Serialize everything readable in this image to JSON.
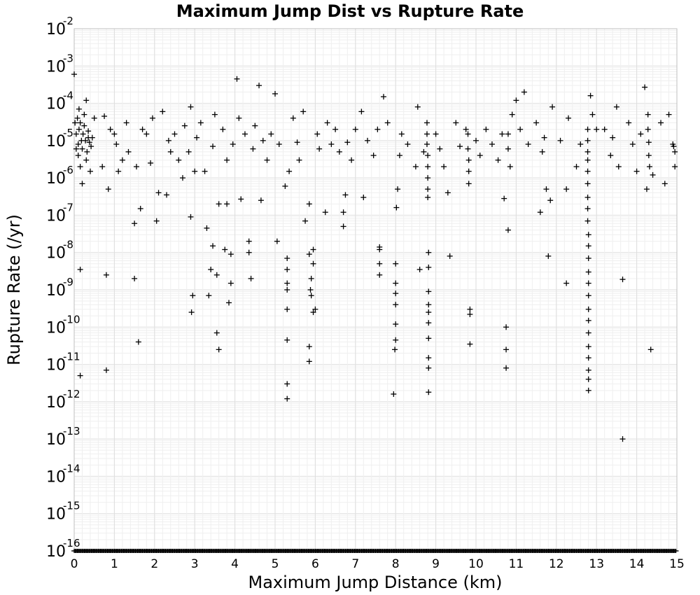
{
  "chart_data": {
    "type": "scatter",
    "title": "Maximum Jump Dist vs Rupture Rate",
    "xlabel": "Maximum Jump Distance (km)",
    "ylabel": "Rupture Rate (/yr)",
    "xlim": [
      0,
      15
    ],
    "ylim": [
      1e-16,
      0.01
    ],
    "yscale": "log",
    "grid": true,
    "legend": "none",
    "marker": "plus",
    "marker_color": "#000000",
    "x_ticks": [
      "0",
      "1",
      "2",
      "3",
      "4",
      "5",
      "6",
      "7",
      "8",
      "9",
      "10",
      "11",
      "12",
      "13",
      "14",
      "15"
    ],
    "y_tick_base": "10",
    "y_tick_exponents": [
      "-2",
      "-3",
      "-4",
      "-5",
      "-6",
      "-7",
      "-8",
      "-9",
      "-10",
      "-11",
      "-12",
      "-13",
      "-14",
      "-15",
      "-16"
    ],
    "series": [
      {
        "points": [
          [
            0.0,
            0.0006
          ],
          [
            0.02,
            3e-05
          ],
          [
            0.05,
            1.5e-05
          ],
          [
            0.08,
            4e-05
          ],
          [
            0.1,
            8e-06
          ],
          [
            0.12,
            2e-05
          ],
          [
            0.15,
            3e-05
          ],
          [
            0.18,
            1e-05
          ],
          [
            0.2,
            6e-06
          ],
          [
            0.22,
            1.5e-05
          ],
          [
            0.25,
            2.5e-05
          ],
          [
            0.28,
            1e-05
          ],
          [
            0.3,
            0.00012
          ],
          [
            0.32,
            5e-06
          ],
          [
            0.35,
            1.8e-05
          ],
          [
            0.38,
            9e-06
          ],
          [
            0.4,
            1.5e-06
          ],
          [
            0.42,
            7e-06
          ],
          [
            0.45,
            1.2e-05
          ],
          [
            0.5,
            4e-05
          ],
          [
            0.05,
            6e-06
          ],
          [
            0.1,
            4e-06
          ],
          [
            0.15,
            2e-06
          ],
          [
            0.2,
            7e-07
          ],
          [
            0.15,
            3.5e-09
          ],
          [
            0.15,
            5e-12
          ],
          [
            0.3,
            3e-06
          ],
          [
            0.25,
            5e-05
          ],
          [
            0.35,
            1.2e-05
          ],
          [
            0.12,
            7e-05
          ],
          [
            0.7,
            2e-06
          ],
          [
            0.75,
            4.5e-05
          ],
          [
            0.8,
            2.5e-09
          ],
          [
            0.8,
            7e-12
          ],
          [
            0.85,
            5e-07
          ],
          [
            0.9,
            2e-05
          ],
          [
            1.0,
            1.5e-05
          ],
          [
            1.05,
            8e-06
          ],
          [
            1.1,
            1.5e-06
          ],
          [
            1.2,
            3e-06
          ],
          [
            1.3,
            3e-05
          ],
          [
            1.35,
            5e-06
          ],
          [
            1.5,
            6e-08
          ],
          [
            1.5,
            2e-09
          ],
          [
            1.55,
            2e-06
          ],
          [
            1.6,
            4e-11
          ],
          [
            1.65,
            1.5e-07
          ],
          [
            1.7,
            2e-05
          ],
          [
            1.8,
            1.5e-05
          ],
          [
            1.9,
            2.5e-06
          ],
          [
            1.95,
            4e-05
          ],
          [
            2.05,
            7e-08
          ],
          [
            2.1,
            4e-07
          ],
          [
            2.2,
            6e-05
          ],
          [
            2.3,
            3.5e-07
          ],
          [
            2.35,
            1e-05
          ],
          [
            2.4,
            5e-06
          ],
          [
            2.5,
            1.5e-05
          ],
          [
            2.6,
            3e-06
          ],
          [
            2.7,
            1e-06
          ],
          [
            2.75,
            2.5e-05
          ],
          [
            2.85,
            5e-06
          ],
          [
            2.9,
            8e-05
          ],
          [
            2.9,
            9e-08
          ],
          [
            2.92,
            2.5e-10
          ],
          [
            2.95,
            7e-10
          ],
          [
            3.0,
            1.5e-06
          ],
          [
            3.05,
            1.2e-05
          ],
          [
            3.15,
            3e-05
          ],
          [
            3.25,
            1.5e-06
          ],
          [
            3.3,
            4.5e-08
          ],
          [
            3.35,
            7e-10
          ],
          [
            3.4,
            3.5e-09
          ],
          [
            3.45,
            1.5e-08
          ],
          [
            3.45,
            7e-06
          ],
          [
            3.5,
            5e-05
          ],
          [
            3.55,
            2.5e-09
          ],
          [
            3.55,
            7e-11
          ],
          [
            3.6,
            2.5e-11
          ],
          [
            3.6,
            2e-07
          ],
          [
            3.7,
            2e-05
          ],
          [
            3.75,
            1.2e-08
          ],
          [
            3.8,
            3e-06
          ],
          [
            3.85,
            4.5e-10
          ],
          [
            3.9,
            9e-09
          ],
          [
            3.9,
            1.5e-09
          ],
          [
            3.95,
            8e-06
          ],
          [
            3.8,
            2e-07
          ],
          [
            4.05,
            0.00045
          ],
          [
            4.1,
            4e-05
          ],
          [
            4.15,
            2.7e-07
          ],
          [
            4.25,
            1.5e-05
          ],
          [
            4.35,
            2e-08
          ],
          [
            4.35,
            1e-08
          ],
          [
            4.4,
            2e-09
          ],
          [
            4.45,
            6e-06
          ],
          [
            4.5,
            2.5e-05
          ],
          [
            4.6,
            0.0003
          ],
          [
            4.65,
            2.5e-07
          ],
          [
            4.7,
            1e-05
          ],
          [
            4.8,
            3e-06
          ],
          [
            4.9,
            1.5e-05
          ],
          [
            5.0,
            0.00018
          ],
          [
            5.05,
            2e-08
          ],
          [
            5.1,
            8e-06
          ],
          [
            5.25,
            6e-07
          ],
          [
            5.3,
            7e-09
          ],
          [
            5.3,
            3.5e-09
          ],
          [
            5.3,
            1.5e-09
          ],
          [
            5.3,
            1e-09
          ],
          [
            5.3,
            3e-10
          ],
          [
            5.3,
            4.5e-11
          ],
          [
            5.3,
            3e-12
          ],
          [
            5.3,
            1.2e-12
          ],
          [
            5.35,
            1.5e-06
          ],
          [
            5.45,
            4e-05
          ],
          [
            5.55,
            9e-06
          ],
          [
            5.6,
            3e-06
          ],
          [
            5.7,
            6e-05
          ],
          [
            5.75,
            7e-08
          ],
          [
            5.85,
            2e-07
          ],
          [
            5.85,
            9e-09
          ],
          [
            5.85,
            3e-11
          ],
          [
            5.85,
            1.2e-11
          ],
          [
            5.88,
            1e-09
          ],
          [
            5.9,
            2e-09
          ],
          [
            5.9,
            7e-10
          ],
          [
            5.95,
            1.2e-08
          ],
          [
            5.95,
            5e-09
          ],
          [
            5.95,
            2.5e-10
          ],
          [
            6.0,
            3e-10
          ],
          [
            6.05,
            1.5e-05
          ],
          [
            6.1,
            6e-06
          ],
          [
            6.25,
            1.2e-07
          ],
          [
            6.3,
            3e-05
          ],
          [
            6.4,
            8e-06
          ],
          [
            6.5,
            2e-05
          ],
          [
            6.6,
            5e-06
          ],
          [
            6.7,
            5e-08
          ],
          [
            6.7,
            1.2e-07
          ],
          [
            6.75,
            3.5e-07
          ],
          [
            6.8,
            9e-06
          ],
          [
            6.9,
            3e-06
          ],
          [
            7.0,
            2e-05
          ],
          [
            7.15,
            6e-05
          ],
          [
            7.2,
            3e-07
          ],
          [
            7.3,
            1e-05
          ],
          [
            7.45,
            4e-06
          ],
          [
            7.55,
            2e-05
          ],
          [
            7.6,
            1.4e-08
          ],
          [
            7.6,
            1.2e-08
          ],
          [
            7.6,
            5e-09
          ],
          [
            7.6,
            2.5e-09
          ],
          [
            7.7,
            0.00015
          ],
          [
            7.8,
            3e-05
          ],
          [
            7.95,
            1.6e-12
          ],
          [
            7.98,
            2.5e-11
          ],
          [
            8.0,
            5e-09
          ],
          [
            8.0,
            1.5e-09
          ],
          [
            8.0,
            8e-10
          ],
          [
            8.0,
            4e-10
          ],
          [
            8.0,
            1.2e-10
          ],
          [
            8.0,
            4.5e-11
          ],
          [
            8.02,
            1.6e-07
          ],
          [
            8.05,
            5e-07
          ],
          [
            8.1,
            4e-06
          ],
          [
            8.15,
            1.5e-05
          ],
          [
            8.3,
            8e-06
          ],
          [
            8.5,
            2e-06
          ],
          [
            8.55,
            8e-05
          ],
          [
            8.6,
            3.5e-09
          ],
          [
            8.7,
            5e-06
          ],
          [
            8.78,
            3e-05
          ],
          [
            8.78,
            1.5e-05
          ],
          [
            8.78,
            8e-06
          ],
          [
            8.8,
            4e-06
          ],
          [
            8.8,
            2e-06
          ],
          [
            8.8,
            1e-06
          ],
          [
            8.8,
            5e-07
          ],
          [
            8.8,
            3e-07
          ],
          [
            8.82,
            1e-08
          ],
          [
            8.82,
            4e-09
          ],
          [
            8.82,
            9e-10
          ],
          [
            8.82,
            4e-10
          ],
          [
            8.82,
            2.5e-10
          ],
          [
            8.82,
            1.3e-10
          ],
          [
            8.82,
            5e-11
          ],
          [
            8.82,
            1.5e-11
          ],
          [
            8.82,
            8e-12
          ],
          [
            8.82,
            1.8e-12
          ],
          [
            9.0,
            1.5e-05
          ],
          [
            9.1,
            6e-06
          ],
          [
            9.2,
            2e-06
          ],
          [
            9.3,
            4e-07
          ],
          [
            9.35,
            8e-09
          ],
          [
            9.5,
            3e-05
          ],
          [
            9.6,
            7e-06
          ],
          [
            9.75,
            2e-05
          ],
          [
            9.8,
            1.5e-05
          ],
          [
            9.8,
            6e-06
          ],
          [
            9.82,
            3e-06
          ],
          [
            9.82,
            1.5e-06
          ],
          [
            9.82,
            7e-07
          ],
          [
            9.85,
            3e-10
          ],
          [
            9.85,
            2.2e-10
          ],
          [
            9.85,
            3.5e-11
          ],
          [
            10.0,
            1e-05
          ],
          [
            10.1,
            4e-06
          ],
          [
            10.25,
            2e-05
          ],
          [
            10.4,
            8e-06
          ],
          [
            10.55,
            3e-06
          ],
          [
            10.65,
            1.5e-05
          ],
          [
            10.7,
            2.8e-07
          ],
          [
            10.75,
            1e-10
          ],
          [
            10.75,
            2.5e-11
          ],
          [
            10.75,
            8e-12
          ],
          [
            10.8,
            4e-08
          ],
          [
            10.8,
            1.5e-05
          ],
          [
            10.8,
            6e-06
          ],
          [
            10.85,
            2e-06
          ],
          [
            10.9,
            5e-05
          ],
          [
            11.0,
            0.00012
          ],
          [
            11.1,
            2e-05
          ],
          [
            11.2,
            0.0002
          ],
          [
            11.3,
            8e-06
          ],
          [
            11.5,
            3e-05
          ],
          [
            11.6,
            1.2e-07
          ],
          [
            11.65,
            5e-06
          ],
          [
            11.7,
            1.2e-05
          ],
          [
            11.75,
            5e-07
          ],
          [
            11.8,
            8e-09
          ],
          [
            11.85,
            2.5e-07
          ],
          [
            11.9,
            8e-05
          ],
          [
            12.1,
            1e-05
          ],
          [
            12.25,
            5e-07
          ],
          [
            12.25,
            1.5e-09
          ],
          [
            12.3,
            4e-05
          ],
          [
            12.5,
            2e-06
          ],
          [
            12.6,
            8e-06
          ],
          [
            12.78,
            2e-05
          ],
          [
            12.78,
            1e-05
          ],
          [
            12.78,
            5e-06
          ],
          [
            12.78,
            3e-06
          ],
          [
            12.78,
            1.5e-06
          ],
          [
            12.78,
            7e-07
          ],
          [
            12.78,
            3e-07
          ],
          [
            12.78,
            1.5e-07
          ],
          [
            12.78,
            7e-08
          ],
          [
            12.8,
            3e-08
          ],
          [
            12.8,
            1.5e-08
          ],
          [
            12.8,
            7e-09
          ],
          [
            12.8,
            3e-09
          ],
          [
            12.8,
            1.5e-09
          ],
          [
            12.8,
            7e-10
          ],
          [
            12.8,
            3e-10
          ],
          [
            12.8,
            1.5e-10
          ],
          [
            12.8,
            7e-11
          ],
          [
            12.8,
            3e-11
          ],
          [
            12.8,
            1.5e-11
          ],
          [
            12.8,
            7e-12
          ],
          [
            12.8,
            4e-12
          ],
          [
            12.8,
            2e-12
          ],
          [
            12.85,
            0.00016
          ],
          [
            12.9,
            5e-05
          ],
          [
            13.0,
            2e-05
          ],
          [
            13.2,
            2e-05
          ],
          [
            13.35,
            4e-06
          ],
          [
            13.4,
            1.2e-05
          ],
          [
            13.5,
            8e-05
          ],
          [
            13.55,
            2e-06
          ],
          [
            13.65,
            1.9e-09
          ],
          [
            13.65,
            1e-13
          ],
          [
            13.8,
            3e-05
          ],
          [
            13.9,
            8e-06
          ],
          [
            14.0,
            1.5e-06
          ],
          [
            14.1,
            1.5e-05
          ],
          [
            14.2,
            0.00027
          ],
          [
            14.25,
            5e-07
          ],
          [
            14.28,
            5e-05
          ],
          [
            14.28,
            2e-05
          ],
          [
            14.3,
            9e-06
          ],
          [
            14.3,
            4e-06
          ],
          [
            14.32,
            2e-06
          ],
          [
            14.35,
            2.5e-11
          ],
          [
            14.4,
            1.2e-06
          ],
          [
            14.6,
            3e-05
          ],
          [
            14.7,
            7e-07
          ],
          [
            14.8,
            5e-05
          ],
          [
            14.9,
            8e-06
          ],
          [
            14.95,
            2e-06
          ],
          [
            14.95,
            5e-06
          ],
          [
            14.92,
            7e-06
          ]
        ]
      }
    ]
  }
}
